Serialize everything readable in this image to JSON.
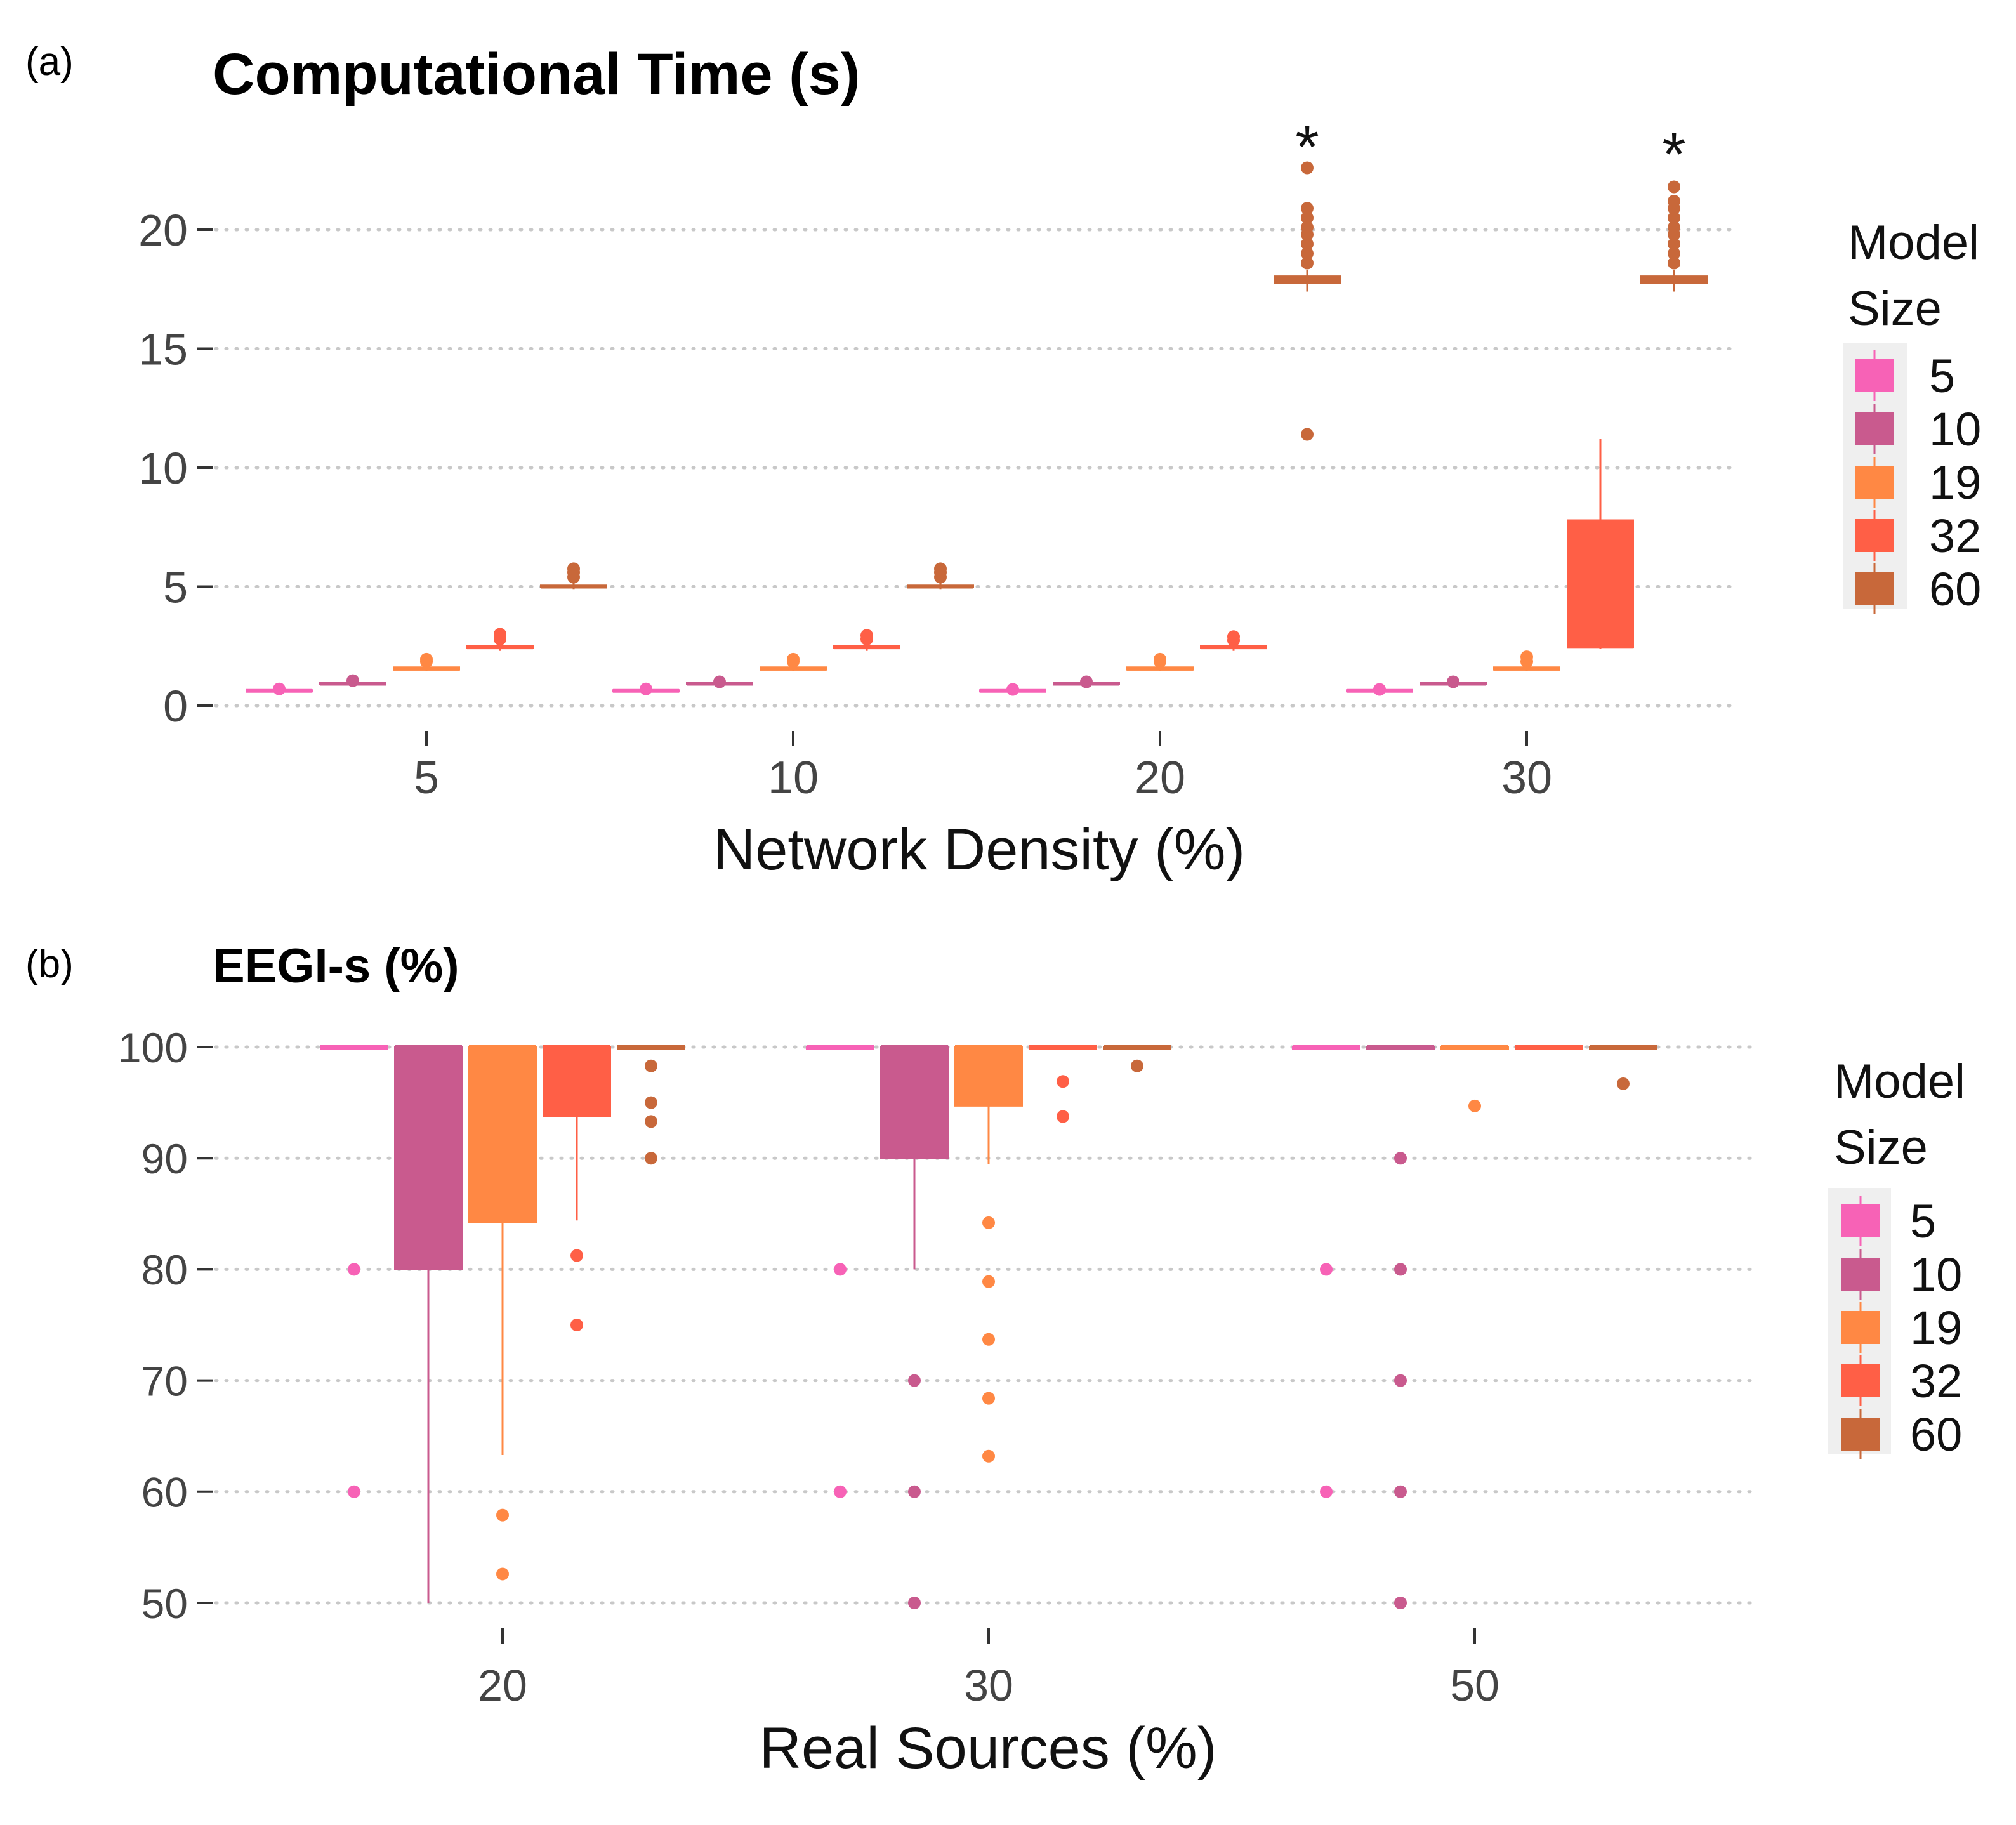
{
  "chart_data": [
    {
      "type": "boxplot",
      "panel_label": "(a)",
      "title": "Computational Time (s)",
      "xlabel": "Network Density (%)",
      "ylabel": "",
      "ylim": [
        -1,
        24
      ],
      "yticks": [
        0,
        5,
        10,
        15,
        20
      ],
      "categories": [
        "5",
        "10",
        "20",
        "30"
      ],
      "grid": "horizontal-dotted",
      "legend": {
        "title_line1": "Model",
        "title_line2": "Size",
        "placement": "right"
      },
      "series": [
        {
          "name": "5",
          "color": "#F762B6",
          "boxes": [
            {
              "min": 0.55,
              "q1": 0.6,
              "median": 0.62,
              "q3": 0.66,
              "max": 0.7,
              "outliers": [
                0.7
              ]
            },
            {
              "min": 0.55,
              "q1": 0.6,
              "median": 0.62,
              "q3": 0.66,
              "max": 0.7,
              "outliers": [
                0.7
              ]
            },
            {
              "min": 0.55,
              "q1": 0.6,
              "median": 0.62,
              "q3": 0.66,
              "max": 0.7,
              "outliers": [
                0.68
              ]
            },
            {
              "min": 0.55,
              "q1": 0.6,
              "median": 0.62,
              "q3": 0.66,
              "max": 0.7,
              "outliers": [
                0.68
              ]
            }
          ]
        },
        {
          "name": "10",
          "color": "#C95A8E",
          "boxes": [
            {
              "min": 0.85,
              "q1": 0.9,
              "median": 0.92,
              "q3": 0.96,
              "max": 1.0,
              "outliers": [
                1.05
              ]
            },
            {
              "min": 0.85,
              "q1": 0.9,
              "median": 0.92,
              "q3": 0.96,
              "max": 1.0,
              "outliers": [
                1.0
              ]
            },
            {
              "min": 0.85,
              "q1": 0.9,
              "median": 0.92,
              "q3": 0.96,
              "max": 1.0,
              "outliers": [
                1.0
              ]
            },
            {
              "min": 0.85,
              "q1": 0.9,
              "median": 0.92,
              "q3": 0.96,
              "max": 1.0,
              "outliers": [
                1.0
              ]
            }
          ]
        },
        {
          "name": "19",
          "color": "#FF8844",
          "boxes": [
            {
              "min": 1.45,
              "q1": 1.5,
              "median": 1.55,
              "q3": 1.62,
              "max": 1.7,
              "outliers": [
                1.85,
                1.95
              ]
            },
            {
              "min": 1.45,
              "q1": 1.5,
              "median": 1.55,
              "q3": 1.62,
              "max": 1.7,
              "outliers": [
                1.85,
                1.95
              ]
            },
            {
              "min": 1.45,
              "q1": 1.5,
              "median": 1.55,
              "q3": 1.62,
              "max": 1.7,
              "outliers": [
                1.85,
                1.95
              ]
            },
            {
              "min": 1.45,
              "q1": 1.5,
              "median": 1.55,
              "q3": 1.62,
              "max": 1.7,
              "outliers": [
                1.85,
                2.05
              ]
            }
          ]
        },
        {
          "name": "32",
          "color": "#FF5F46",
          "boxes": [
            {
              "min": 2.3,
              "q1": 2.4,
              "median": 2.45,
              "q3": 2.52,
              "max": 2.6,
              "outliers": [
                2.8,
                3.0
              ]
            },
            {
              "min": 2.3,
              "q1": 2.4,
              "median": 2.45,
              "q3": 2.52,
              "max": 2.6,
              "outliers": [
                2.8,
                2.95
              ]
            },
            {
              "min": 2.3,
              "q1": 2.4,
              "median": 2.45,
              "q3": 2.52,
              "max": 2.6,
              "outliers": [
                2.75,
                2.9
              ]
            },
            {
              "min": 2.4,
              "q1": 2.45,
              "median": 2.5,
              "q3": 7.8,
              "max": 11.2,
              "outliers": []
            }
          ]
        },
        {
          "name": "60",
          "color": "#C8683A",
          "boxes": [
            {
              "min": 4.9,
              "q1": 4.98,
              "median": 5.0,
              "q3": 5.06,
              "max": 5.2,
              "outliers": [
                5.4,
                5.6,
                5.75
              ]
            },
            {
              "min": 4.9,
              "q1": 4.98,
              "median": 5.0,
              "q3": 5.06,
              "max": 5.2,
              "outliers": [
                5.4,
                5.6,
                5.75
              ]
            },
            {
              "min": 17.4,
              "q1": 17.75,
              "median": 17.9,
              "q3": 18.05,
              "max": 18.3,
              "outliers": [
                11.4,
                18.6,
                19.0,
                19.4,
                19.8,
                20.1,
                20.5,
                20.9,
                22.6
              ]
            },
            {
              "min": 17.4,
              "q1": 17.75,
              "median": 17.9,
              "q3": 18.05,
              "max": 18.3,
              "outliers": [
                18.6,
                19.0,
                19.4,
                19.8,
                20.1,
                20.5,
                20.9,
                21.2,
                21.8
              ]
            }
          ]
        }
      ],
      "annotations": [
        {
          "text": "*",
          "category": "20",
          "series": "60",
          "y": 24.2
        },
        {
          "text": "*",
          "category": "30",
          "series": "60",
          "y": 23.9
        }
      ]
    },
    {
      "type": "boxplot",
      "panel_label": "(b)",
      "title": "EEGI-s (%)",
      "xlabel": "Real Sources (%)",
      "ylabel": "",
      "ylim": [
        47,
        102
      ],
      "yticks": [
        50,
        60,
        70,
        80,
        90,
        100
      ],
      "categories": [
        "20",
        "30",
        "50"
      ],
      "grid": "horizontal-dotted",
      "legend": {
        "title_line1": "Model",
        "title_line2": "Size",
        "placement": "right"
      },
      "series": [
        {
          "name": "5",
          "color": "#F762B6",
          "boxes": [
            {
              "min": 100,
              "q1": 100,
              "median": 100,
              "q3": 100,
              "max": 100,
              "outliers": [
                80,
                60
              ]
            },
            {
              "min": 100,
              "q1": 100,
              "median": 100,
              "q3": 100,
              "max": 100,
              "outliers": [
                80,
                60
              ]
            },
            {
              "min": 100,
              "q1": 100,
              "median": 100,
              "q3": 100,
              "max": 100,
              "outliers": [
                80,
                60
              ]
            }
          ]
        },
        {
          "name": "10",
          "color": "#C95A8E",
          "boxes": [
            {
              "min": 50,
              "q1": 80,
              "median": 100,
              "q3": 100,
              "max": 100,
              "outliers": []
            },
            {
              "min": 80,
              "q1": 90,
              "median": 100,
              "q3": 100,
              "max": 100,
              "outliers": [
                70,
                60,
                50
              ]
            },
            {
              "min": 100,
              "q1": 100,
              "median": 100,
              "q3": 100,
              "max": 100,
              "outliers": [
                90,
                80,
                70,
                60,
                50
              ]
            }
          ]
        },
        {
          "name": "19",
          "color": "#FF8844",
          "boxes": [
            {
              "min": 63.3,
              "q1": 84.2,
              "median": 100,
              "q3": 100,
              "max": 100,
              "outliers": [
                57.9,
                52.6
              ]
            },
            {
              "min": 89.5,
              "q1": 94.7,
              "median": 100,
              "q3": 100,
              "max": 100,
              "outliers": [
                84.2,
                78.9,
                73.7,
                68.4,
                63.2
              ]
            },
            {
              "min": 100,
              "q1": 100,
              "median": 100,
              "q3": 100,
              "max": 100,
              "outliers": [
                94.7
              ]
            }
          ]
        },
        {
          "name": "32",
          "color": "#FF5F46",
          "boxes": [
            {
              "min": 84.4,
              "q1": 93.75,
              "median": 100,
              "q3": 100,
              "max": 100,
              "outliers": [
                81.25,
                75.0
              ]
            },
            {
              "min": 100,
              "q1": 100,
              "median": 100,
              "q3": 100,
              "max": 100,
              "outliers": [
                96.9,
                93.75
              ]
            },
            {
              "min": 100,
              "q1": 100,
              "median": 100,
              "q3": 100,
              "max": 100,
              "outliers": []
            }
          ]
        },
        {
          "name": "60",
          "color": "#C8683A",
          "boxes": [
            {
              "min": 100,
              "q1": 100,
              "median": 100,
              "q3": 100,
              "max": 100,
              "outliers": [
                98.3,
                95.0,
                93.3,
                90.0
              ]
            },
            {
              "min": 100,
              "q1": 100,
              "median": 100,
              "q3": 100,
              "max": 100,
              "outliers": [
                98.3
              ]
            },
            {
              "min": 100,
              "q1": 100,
              "median": 100,
              "q3": 100,
              "max": 100,
              "outliers": [
                96.7
              ]
            }
          ]
        }
      ],
      "annotations": []
    }
  ]
}
